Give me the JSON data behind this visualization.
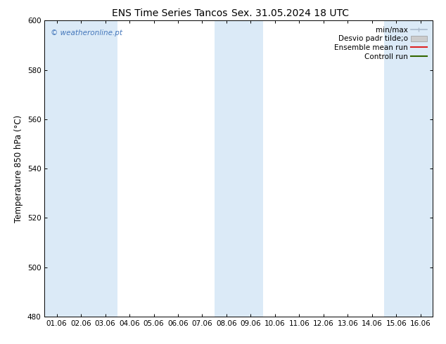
{
  "title_left": "ENS Time Series Tancos",
  "title_right": "Sex. 31.05.2024 18 UTC",
  "ylabel": "Temperature 850 hPa (°C)",
  "ylim": [
    480,
    600
  ],
  "yticks": [
    480,
    500,
    520,
    540,
    560,
    580,
    600
  ],
  "x_labels": [
    "01.06",
    "02.06",
    "03.06",
    "04.06",
    "05.06",
    "06.06",
    "07.06",
    "08.06",
    "09.06",
    "10.06",
    "11.06",
    "12.06",
    "13.06",
    "14.06",
    "15.06",
    "16.06"
  ],
  "shaded_columns": [
    0,
    1,
    2,
    7,
    8,
    14,
    15
  ],
  "shade_color": "#dbeaf7",
  "bg_color": "#ffffff",
  "plot_bg_color": "#ffffff",
  "watermark": "© weatheronline.pt",
  "watermark_color": "#4477bb",
  "legend_items": [
    {
      "label": "min/max",
      "color": "#aabbcc",
      "type": "errorbar"
    },
    {
      "label": "Desvio padr tilde;o",
      "color": "#cccccc",
      "type": "bar"
    },
    {
      "label": "Ensemble mean run",
      "color": "#dd2222",
      "type": "line"
    },
    {
      "label": "Controll run",
      "color": "#336600",
      "type": "line"
    }
  ],
  "title_fontsize": 10,
  "tick_fontsize": 7.5,
  "ylabel_fontsize": 8.5,
  "legend_fontsize": 7.5
}
